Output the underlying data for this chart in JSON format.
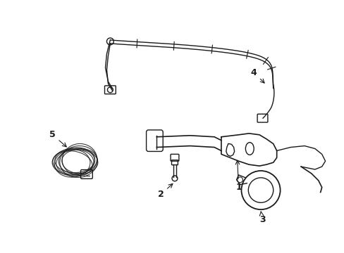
{
  "background_color": "#ffffff",
  "line_color": "#1a1a1a",
  "fig_width": 4.89,
  "fig_height": 3.6,
  "dpi": 100,
  "label_fontsize": 9
}
